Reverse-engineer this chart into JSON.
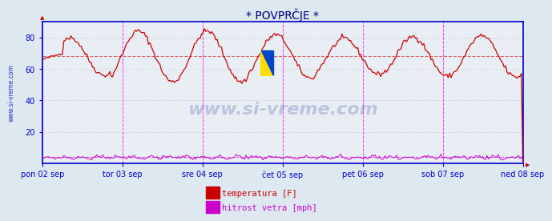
{
  "title": "* POVPRČJE *",
  "title_color": "#000080",
  "bg_color": "#dde8f0",
  "plot_bg_color": "#e8eef4",
  "ylim": [
    0,
    90
  ],
  "yticks": [
    20,
    40,
    60,
    80
  ],
  "ylabel_color": "#0000cc",
  "grid_color": "#c0c8d0",
  "x_labels": [
    "pon 02 sep",
    "tor 03 sep",
    "sre 04 sep",
    "čet 05 sep",
    "pet 06 sep",
    "sob 07 sep",
    "ned 08 sep"
  ],
  "x_tick_positions": [
    0.0,
    0.1667,
    0.3333,
    0.5,
    0.6667,
    0.8333,
    1.0
  ],
  "vline_positions": [
    0.0,
    0.1667,
    0.3333,
    0.5,
    0.6667,
    0.8333,
    1.0
  ],
  "temp_avg_line": 68,
  "wind_avg_line": 4,
  "temp_color": "#cc0000",
  "wind_color": "#cc00cc",
  "watermark": "www.si-vreme.com",
  "watermark_color": "#000080",
  "side_label": "www.si-vreme.com",
  "legend_temp": "temperatura [F]",
  "legend_wind": "hitrost vetra [mph]",
  "spine_color": "#0000cc",
  "n_points": 336,
  "temp_base": 68,
  "temp_amplitude": 12,
  "logo_yellow": "#ffdd00",
  "logo_blue": "#0044cc"
}
